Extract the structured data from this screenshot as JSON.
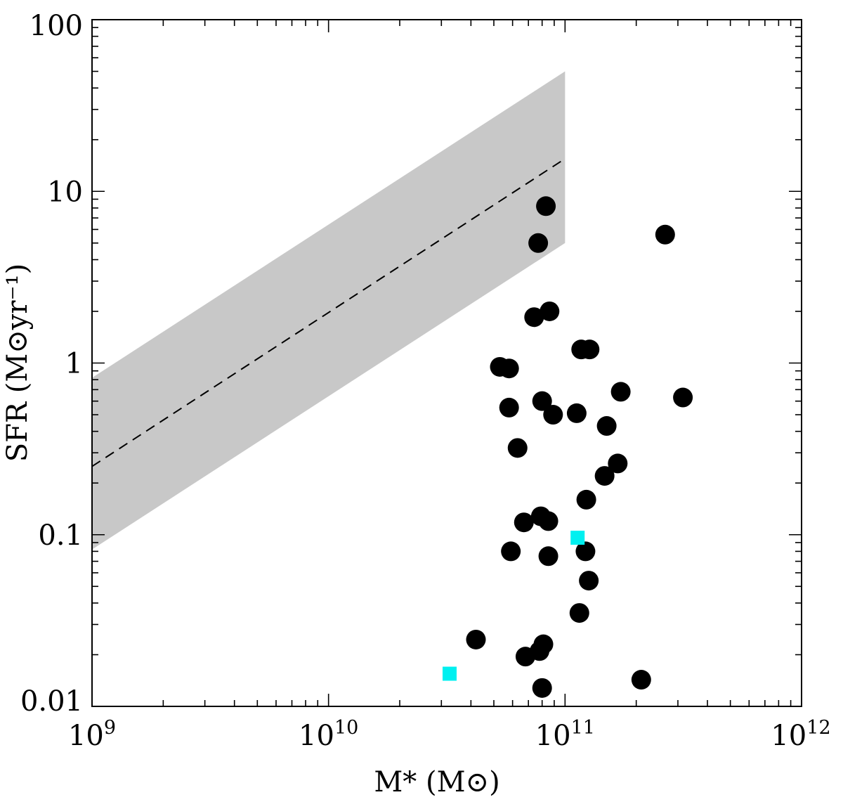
{
  "chart_data": {
    "type": "scatter",
    "title": "",
    "xlabel": "M* (M⊙)",
    "ylabel": "SFR (M⊙yr⁻¹)",
    "xscale": "log",
    "yscale": "log",
    "xlim": [
      1000000000.0,
      1000000000000.0
    ],
    "ylim": [
      0.01,
      100
    ],
    "x_ticks": [
      {
        "value": 1000000000.0,
        "base": "10",
        "exp": "9"
      },
      {
        "value": 10000000000.0,
        "base": "10",
        "exp": "10"
      },
      {
        "value": 100000000000.0,
        "base": "10",
        "exp": "11"
      },
      {
        "value": 1000000000000.0,
        "base": "10",
        "exp": "12"
      }
    ],
    "y_ticks": [
      {
        "value": 0.01,
        "label": "0.01"
      },
      {
        "value": 0.1,
        "label": "0.1"
      },
      {
        "value": 1,
        "label": "1"
      },
      {
        "value": 10,
        "label": "10"
      },
      {
        "value": 100,
        "label": "100"
      }
    ],
    "main_sequence_band": {
      "x": [
        1000000000.0,
        100000000000.0
      ],
      "lower": [
        0.082,
        5.0
      ],
      "upper": [
        0.82,
        50.0
      ],
      "color": "#c8c8c8"
    },
    "main_sequence_line": {
      "x": [
        1000000000.0,
        100000000000.0
      ],
      "y": [
        0.25,
        15.5
      ],
      "style": "dashed",
      "color": "#000000"
    },
    "series": [
      {
        "name": "black-circles",
        "marker": "circle",
        "color": "#000000",
        "points": [
          {
            "x": 83000000000.0,
            "y": 8.2
          },
          {
            "x": 77000000000.0,
            "y": 5.0
          },
          {
            "x": 265000000000.0,
            "y": 5.6
          },
          {
            "x": 74000000000.0,
            "y": 1.85
          },
          {
            "x": 86000000000.0,
            "y": 2.0
          },
          {
            "x": 117000000000.0,
            "y": 1.2
          },
          {
            "x": 127000000000.0,
            "y": 1.2
          },
          {
            "x": 53000000000.0,
            "y": 0.95
          },
          {
            "x": 58000000000.0,
            "y": 0.93
          },
          {
            "x": 172000000000.0,
            "y": 0.68
          },
          {
            "x": 315000000000.0,
            "y": 0.63
          },
          {
            "x": 58000000000.0,
            "y": 0.55
          },
          {
            "x": 80000000000.0,
            "y": 0.6
          },
          {
            "x": 89000000000.0,
            "y": 0.5
          },
          {
            "x": 112000000000.0,
            "y": 0.51
          },
          {
            "x": 150000000000.0,
            "y": 0.43
          },
          {
            "x": 63000000000.0,
            "y": 0.32
          },
          {
            "x": 167000000000.0,
            "y": 0.26
          },
          {
            "x": 147000000000.0,
            "y": 0.22
          },
          {
            "x": 123000000000.0,
            "y": 0.16
          },
          {
            "x": 67000000000.0,
            "y": 0.118
          },
          {
            "x": 79000000000.0,
            "y": 0.128
          },
          {
            "x": 85000000000.0,
            "y": 0.12
          },
          {
            "x": 59000000000.0,
            "y": 0.08
          },
          {
            "x": 85000000000.0,
            "y": 0.075
          },
          {
            "x": 122000000000.0,
            "y": 0.08
          },
          {
            "x": 126000000000.0,
            "y": 0.054
          },
          {
            "x": 115000000000.0,
            "y": 0.035
          },
          {
            "x": 42000000000.0,
            "y": 0.0245
          },
          {
            "x": 78000000000.0,
            "y": 0.021
          },
          {
            "x": 81000000000.0,
            "y": 0.023
          },
          {
            "x": 68000000000.0,
            "y": 0.0195
          },
          {
            "x": 80000000000.0,
            "y": 0.0128
          },
          {
            "x": 210000000000.0,
            "y": 0.0143
          }
        ]
      },
      {
        "name": "cyan-squares",
        "marker": "square",
        "color": "#00f0f0",
        "points": [
          {
            "x": 113000000000.0,
            "y": 0.096
          },
          {
            "x": 32500000000.0,
            "y": 0.0155
          }
        ]
      }
    ]
  }
}
